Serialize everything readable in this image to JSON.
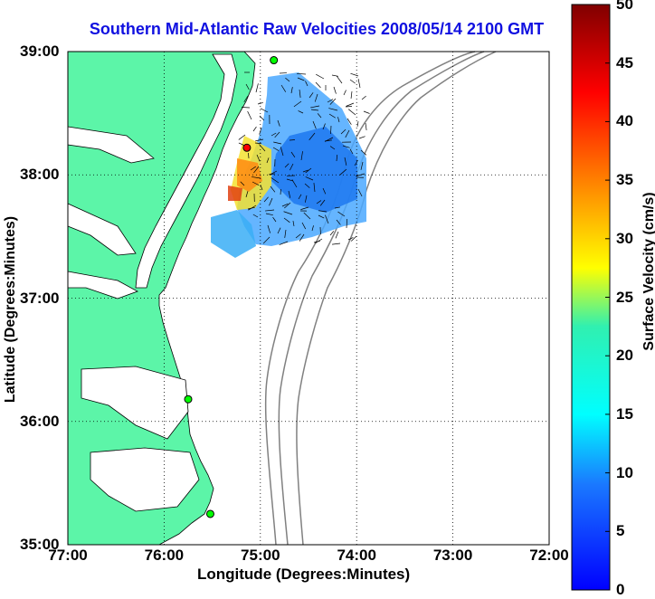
{
  "chart_data": {
    "type": "map",
    "title": "Southern Mid-Atlantic Raw Velocities 2008/05/14 2100 GMT",
    "xlabel": "Longitude (Degrees:Minutes)",
    "ylabel": "Latitude (Degrees:Minutes)",
    "xlim": [
      -77,
      -72
    ],
    "ylim": [
      35,
      39
    ],
    "x_ticks": [
      {
        "value": -77,
        "label": "77:00"
      },
      {
        "value": -76,
        "label": "76:00"
      },
      {
        "value": -75,
        "label": "75:00"
      },
      {
        "value": -74,
        "label": "74:00"
      },
      {
        "value": -73,
        "label": "73:00"
      },
      {
        "value": -72,
        "label": "72:00"
      }
    ],
    "y_ticks": [
      {
        "value": 39,
        "label": "39:00"
      },
      {
        "value": 38,
        "label": "38:00"
      },
      {
        "value": 37,
        "label": "37:00"
      },
      {
        "value": 36,
        "label": "36:00"
      },
      {
        "value": 35,
        "label": "35:00"
      }
    ],
    "grid": true,
    "colorbar": {
      "label": "Surface Velocity (cm/s)",
      "range": [
        0,
        50
      ],
      "ticks": [
        0,
        5,
        10,
        15,
        20,
        25,
        30,
        35,
        40,
        45,
        50
      ],
      "placement": "right"
    },
    "stations": [
      {
        "lon": -74.86,
        "lat": 38.93,
        "color": "#00ff00"
      },
      {
        "lon": -75.14,
        "lat": 38.22,
        "color": "#ff0000"
      },
      {
        "lon": -75.75,
        "lat": 36.18,
        "color": "#00ff00"
      },
      {
        "lon": -75.52,
        "lat": 35.25,
        "color": "#00ff00"
      }
    ],
    "land_color": "#5cf5a8",
    "contour_color": "#808080"
  }
}
